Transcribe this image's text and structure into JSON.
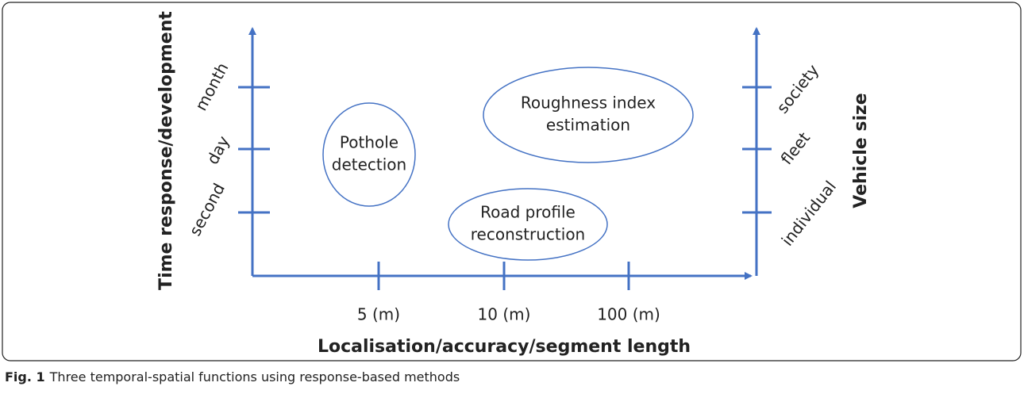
{
  "left_axis": {
    "title": "Time response/development",
    "ticks": [
      "month",
      "day",
      "second"
    ]
  },
  "right_axis": {
    "title": "Vehicle size",
    "ticks": [
      "society",
      "fleet",
      "individual"
    ]
  },
  "bottom_axis": {
    "title": "Localisation/accuracy/segment length",
    "ticks": [
      "5 (m)",
      "10 (m)",
      "100 (m)"
    ]
  },
  "nodes": [
    {
      "lines": [
        "Pothole",
        "detection"
      ]
    },
    {
      "lines": [
        "Roughness index",
        "estimation"
      ]
    },
    {
      "lines": [
        "Road profile",
        "reconstruction"
      ]
    }
  ],
  "caption": {
    "label": "Fig. 1",
    "text": "Three temporal-spatial functions using response-based methods"
  }
}
